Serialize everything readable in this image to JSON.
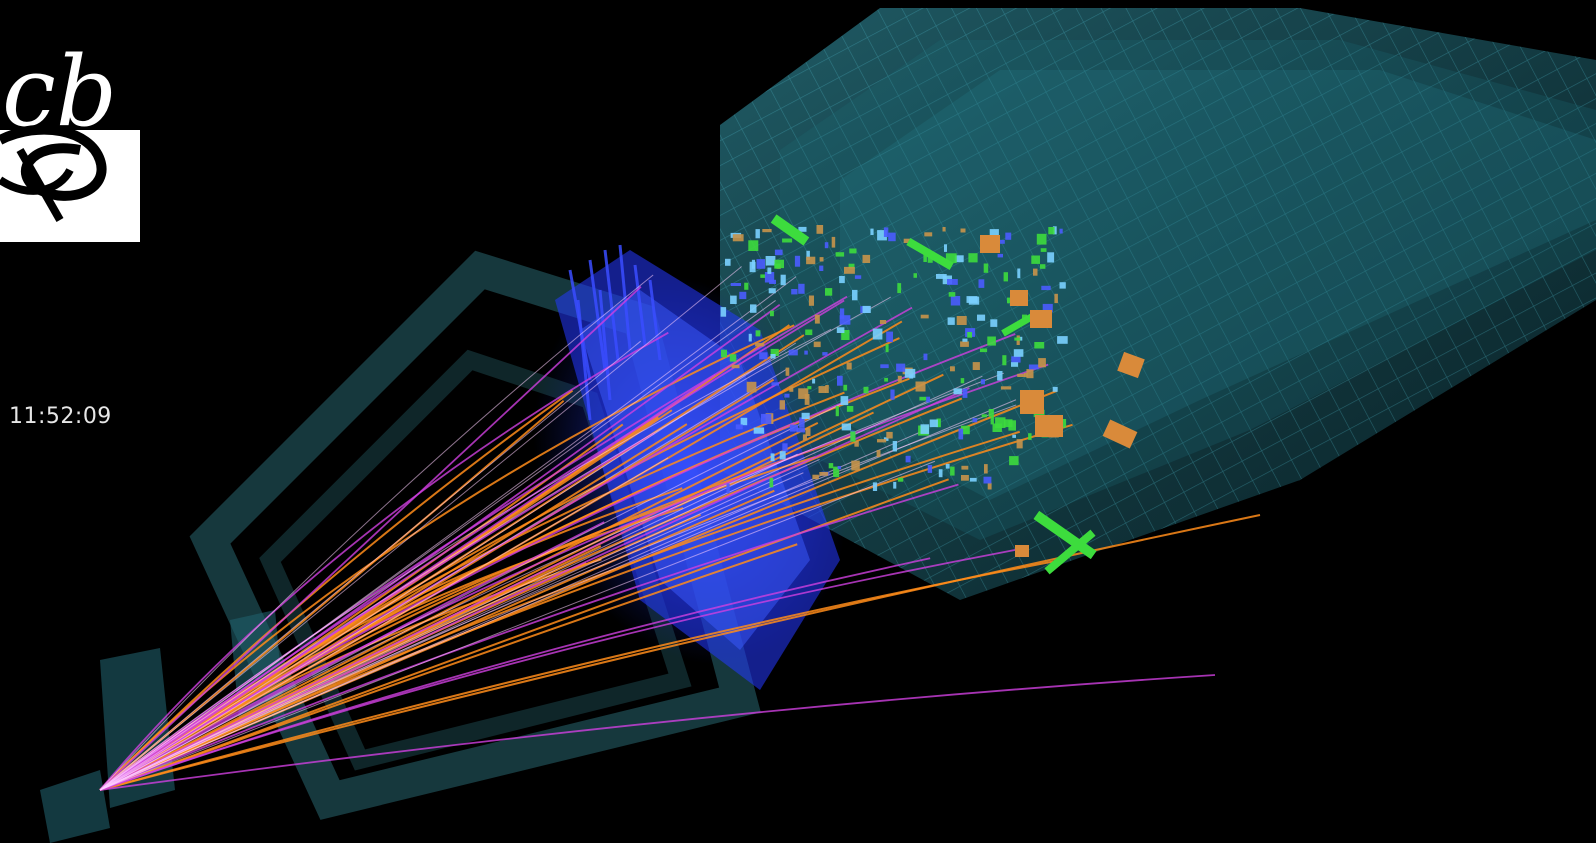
{
  "event_display": {
    "timestamp": "11:52:09",
    "logo_glyphs": "cb",
    "colors": {
      "background": "#000000",
      "detector": "#2e8ea0",
      "calorimeter_blue": "#2a3cff",
      "tracks_orange": "#ff8c1a",
      "tracks_magenta": "#d040e0",
      "hits_green": "#3ddc3d",
      "hits_tan": "#c8944a",
      "hits_blue": "#4a5cff"
    }
  }
}
